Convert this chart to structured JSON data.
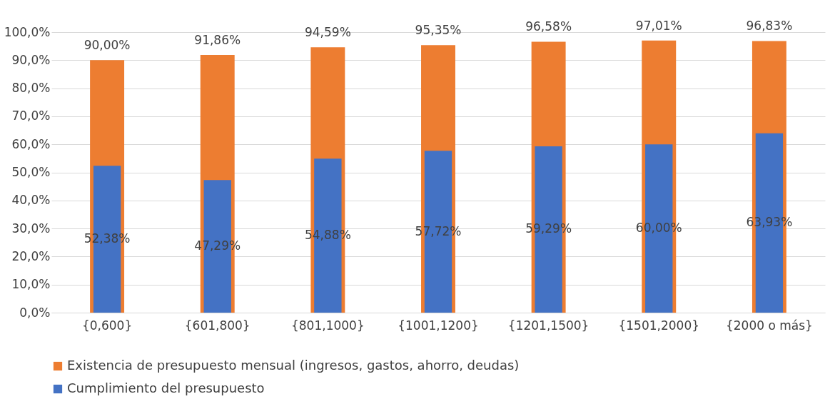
{
  "chart_data": {
    "type": "bar",
    "categories": [
      "{0,600}",
      "{601,800}",
      "{801,1000}",
      "{1001,1200}",
      "{1201,1500}",
      "{1501,2000}",
      "{2000 o más}"
    ],
    "series": [
      {
        "name": "Existencia de presupuesto mensual (ingresos, gastos, ahorro, deudas)",
        "color": "#ed7d31",
        "values": [
          90.0,
          91.86,
          94.59,
          95.35,
          96.58,
          97.01,
          96.83
        ],
        "value_labels": [
          "90,00%",
          "91,86%",
          "94,59%",
          "95,35%",
          "96,58%",
          "97,01%",
          "96,83%"
        ]
      },
      {
        "name": "Cumplimiento del presupuesto",
        "color": "#4472c4",
        "values": [
          52.38,
          47.29,
          54.88,
          57.72,
          59.29,
          60.0,
          63.93
        ],
        "value_labels": [
          "52,38%",
          "47,29%",
          "54,88%",
          "57,72%",
          "59,29%",
          "60,00%",
          "63,93%"
        ]
      }
    ],
    "ylim": [
      0,
      100
    ],
    "yticks": [
      {
        "value": 0,
        "label": "0,0%"
      },
      {
        "value": 10,
        "label": "10,0%"
      },
      {
        "value": 20,
        "label": "20,0%"
      },
      {
        "value": 30,
        "label": "30,0%"
      },
      {
        "value": 40,
        "label": "40,0%"
      },
      {
        "value": 50,
        "label": "50,0%"
      },
      {
        "value": 60,
        "label": "60,0%"
      },
      {
        "value": 70,
        "label": "70,0%"
      },
      {
        "value": 80,
        "label": "80,0%"
      },
      {
        "value": 90,
        "label": "90,0%"
      },
      {
        "value": 100,
        "label": "100,0%"
      }
    ],
    "grid": "y",
    "legend": "bottom"
  }
}
